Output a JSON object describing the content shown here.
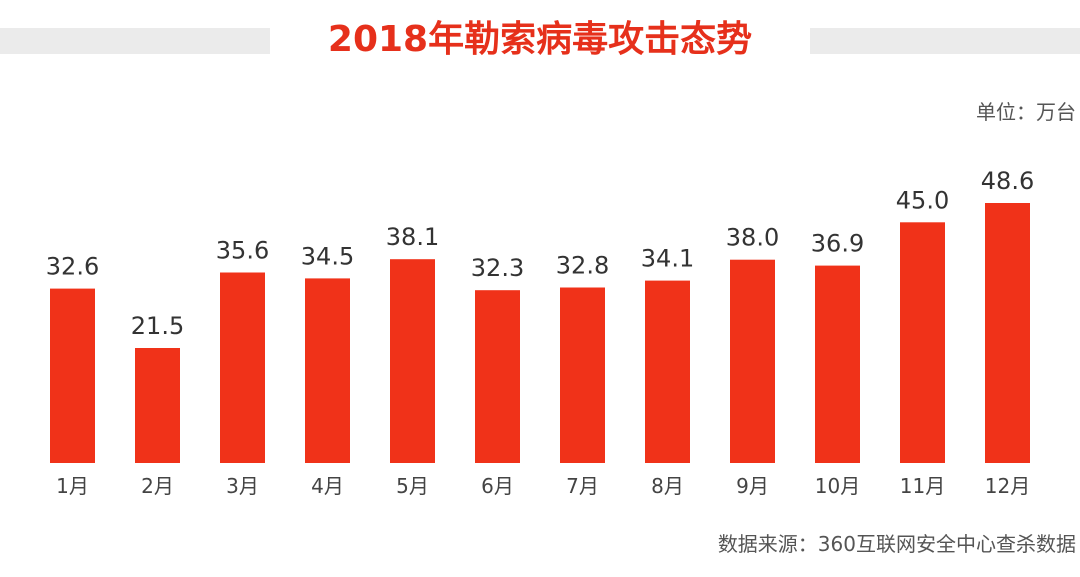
{
  "header": {
    "title": "2018年勒索病毒攻击态势",
    "unit": "单位：万台"
  },
  "footer": {
    "source": "数据来源：360互联网安全中心查杀数据"
  },
  "colors": {
    "bar": "#f03219",
    "title": "#e6301b",
    "title_band": "#ebebeb"
  },
  "chart_data": {
    "type": "bar",
    "title": "2018年勒索病毒攻击态势",
    "categories": [
      "1月",
      "2月",
      "3月",
      "4月",
      "5月",
      "6月",
      "7月",
      "8月",
      "9月",
      "10月",
      "11月",
      "12月"
    ],
    "values": [
      32.6,
      21.5,
      35.6,
      34.5,
      38.1,
      32.3,
      32.8,
      34.1,
      38.0,
      36.9,
      45.0,
      48.6
    ],
    "data_labels": [
      "32.6",
      "21.5",
      "35.6",
      "34.5",
      "38.1",
      "32.3",
      "32.8",
      "34.1",
      "38.0",
      "36.9",
      "45.0",
      "48.6"
    ],
    "ylim": [
      0,
      48.6
    ],
    "grid": false,
    "legend": "none",
    "xlabel": "",
    "ylabel": ""
  }
}
